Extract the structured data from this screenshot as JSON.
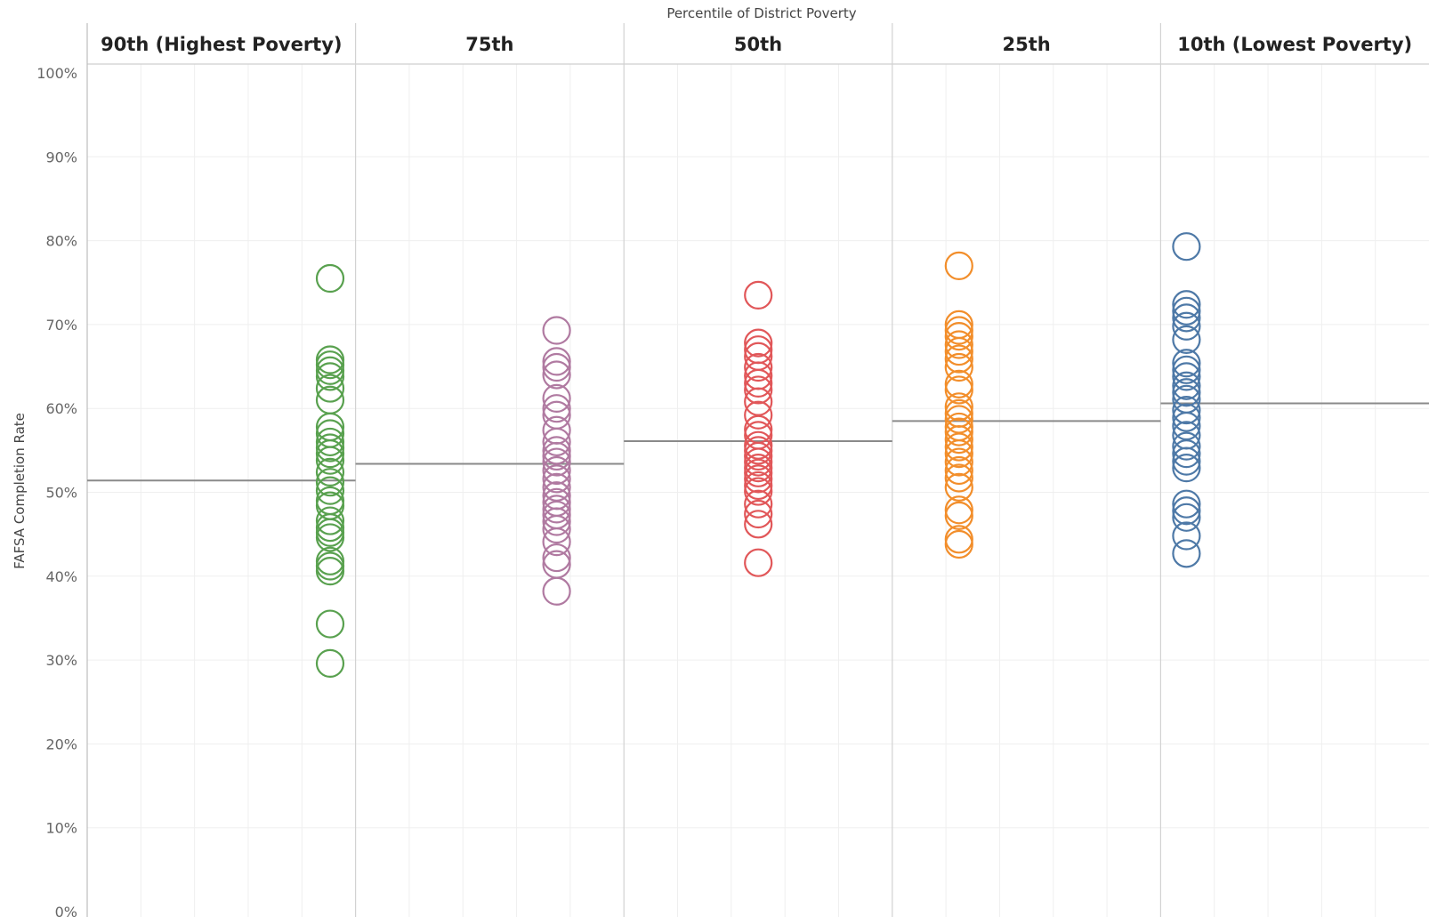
{
  "chart_data": {
    "type": "scatter",
    "title": "Percentile of District Poverty",
    "ylabel": "FAFSA Completion Rate",
    "ylim": [
      0,
      100
    ],
    "y_ticks": [
      "0%",
      "10%",
      "20%",
      "30%",
      "40%",
      "50%",
      "60%",
      "70%",
      "80%",
      "90%",
      "100%"
    ],
    "grid": true,
    "categories": [
      "90th (Highest Poverty)",
      "75th",
      "50th",
      "25th",
      "10th (Lowest Poverty)"
    ],
    "series": [
      {
        "category": "90th (Highest Poverty)",
        "color": "#59a14f",
        "average": 51.4,
        "values": [
          75.5,
          65.8,
          65.2,
          64.5,
          63.8,
          62.4,
          61.0,
          57.8,
          57.0,
          56.0,
          55.3,
          54.6,
          53.8,
          52.4,
          51.2,
          50.2,
          49.0,
          48.4,
          46.6,
          45.8,
          45.2,
          44.6,
          41.8,
          41.2,
          40.6,
          34.3,
          29.6
        ]
      },
      {
        "category": "75th",
        "color": "#b07aa1",
        "average": 53.4,
        "values": [
          69.3,
          65.6,
          64.9,
          64.0,
          61.2,
          60.0,
          59.2,
          57.4,
          56.0,
          55.0,
          54.3,
          53.6,
          52.6,
          51.6,
          50.6,
          49.6,
          48.8,
          48.0,
          47.3,
          46.5,
          45.6,
          44.1,
          42.2,
          41.4,
          38.2
        ]
      },
      {
        "category": "50th",
        "color": "#e15759",
        "average": 56.1,
        "values": [
          73.5,
          67.8,
          67.0,
          66.2,
          64.9,
          63.9,
          63.0,
          62.2,
          60.8,
          59.2,
          57.5,
          56.8,
          55.6,
          55.0,
          54.3,
          53.6,
          52.9,
          52.3,
          51.6,
          50.8,
          50.1,
          48.6,
          47.4,
          46.2,
          41.6
        ]
      },
      {
        "category": "25th",
        "color": "#f28e2b",
        "average": 58.5,
        "values": [
          77.0,
          70.0,
          69.3,
          68.6,
          67.6,
          66.8,
          65.9,
          64.9,
          62.9,
          62.2,
          60.2,
          59.4,
          58.7,
          57.8,
          57.2,
          56.3,
          55.4,
          54.6,
          53.6,
          52.6,
          51.7,
          50.6,
          47.9,
          47.2,
          44.4,
          43.8
        ]
      },
      {
        "category": "10th (Lowest Poverty)",
        "color": "#4e79a7",
        "average": 60.6,
        "values": [
          79.3,
          72.4,
          71.6,
          70.8,
          69.8,
          68.2,
          65.4,
          64.6,
          63.8,
          62.7,
          61.9,
          61.1,
          59.8,
          58.9,
          57.9,
          56.8,
          55.5,
          54.6,
          53.7,
          52.9,
          48.6,
          47.8,
          47.0,
          44.8,
          42.7
        ]
      }
    ]
  }
}
